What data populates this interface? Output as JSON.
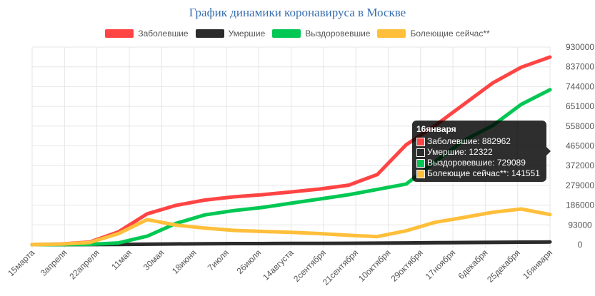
{
  "colors": {
    "cases": "#ff4444",
    "deaths": "#2b2b2b",
    "recovered": "#00c853",
    "active": "#ffbf3a"
  },
  "chart_data": {
    "type": "line",
    "title": "График динамики коронавируса в Москве",
    "legend_position": "top",
    "grid": true,
    "x_tick_labels": [
      "15марта",
      "3апреля",
      "22апреля",
      "11мая",
      "30мая",
      "18июня",
      "7июля",
      "26июля",
      "14августа",
      "2сентября",
      "21сентября",
      "10октября",
      "29октября",
      "17ноября",
      "6декабря",
      "25декабря",
      "16января"
    ],
    "ylim": [
      0,
      930000
    ],
    "y_ticks": [
      0,
      93000,
      186000,
      279000,
      372000,
      465000,
      558000,
      651000,
      744000,
      837000,
      930000
    ],
    "series": [
      {
        "name": "Заболевшие",
        "color_key": "cases",
        "values": [
          0,
          3000,
          12000,
          60000,
          145000,
          185000,
          210000,
          225000,
          235000,
          248000,
          262000,
          280000,
          330000,
          470000,
          560000,
          660000,
          760000,
          835000,
          882962
        ]
      },
      {
        "name": "Умершие",
        "color_key": "deaths",
        "values": [
          0,
          30,
          200,
          800,
          2000,
          3500,
          4500,
          5000,
          5200,
          5600,
          6000,
          6500,
          7000,
          8000,
          9000,
          10000,
          11000,
          11800,
          12322
        ]
      },
      {
        "name": "Выздоровевшие",
        "color_key": "recovered",
        "values": [
          0,
          200,
          1500,
          8000,
          40000,
          100000,
          140000,
          160000,
          175000,
          195000,
          215000,
          235000,
          260000,
          285000,
          390000,
          490000,
          560000,
          660000,
          729089
        ]
      },
      {
        "name": "Болеющие сейчас**",
        "color_key": "active",
        "values": [
          0,
          2800,
          10000,
          52000,
          118000,
          92000,
          78000,
          67000,
          62000,
          58000,
          52000,
          44000,
          38000,
          65000,
          105000,
          128000,
          152000,
          168000,
          141551
        ]
      }
    ]
  },
  "tooltip": {
    "title": "16января",
    "rows": [
      {
        "color_key": "cases",
        "text": "Заболевшие: 882962"
      },
      {
        "color_key": "deaths",
        "text": "Умершие: 12322"
      },
      {
        "color_key": "recovered",
        "text": "Выздоровевшие: 729089"
      },
      {
        "color_key": "active",
        "text": "Болеющие сейчас**: 141551"
      }
    ]
  }
}
